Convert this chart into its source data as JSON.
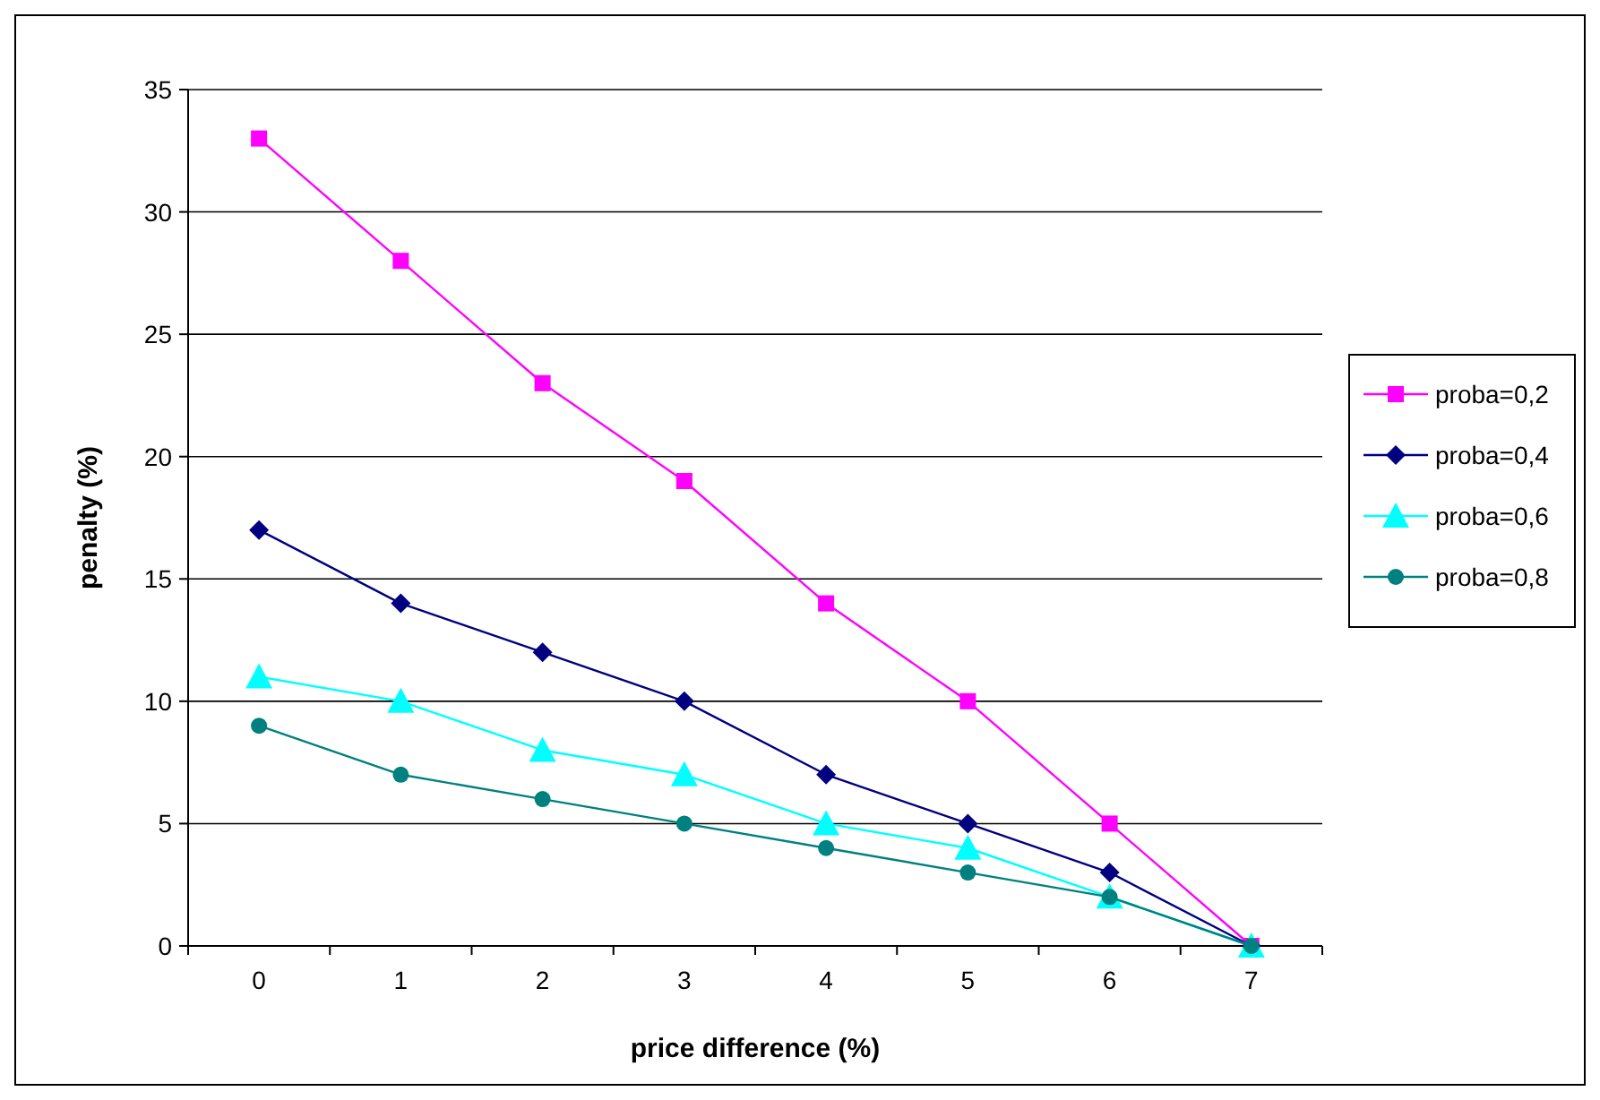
{
  "chart_data": {
    "type": "line",
    "xlabel": "price difference (%)",
    "ylabel": "penalty (%)",
    "categories": [
      "0",
      "1",
      "2",
      "3",
      "4",
      "5",
      "6",
      "7"
    ],
    "series": [
      {
        "name": "proba=0,2",
        "color": "#ff00ff",
        "marker": "square",
        "values": [
          33,
          28,
          23,
          19,
          14,
          10,
          5,
          0
        ]
      },
      {
        "name": "proba=0,4",
        "color": "#000080",
        "marker": "diamond",
        "values": [
          17,
          14,
          12,
          10,
          7,
          5,
          3,
          0
        ]
      },
      {
        "name": "proba=0,6",
        "color": "#00ffff",
        "marker": "triangle",
        "values": [
          11,
          10,
          8,
          7,
          5,
          4,
          2,
          0
        ]
      },
      {
        "name": "proba=0,8",
        "color": "#008080",
        "marker": "circle",
        "values": [
          9,
          7,
          6,
          5,
          4,
          3,
          2,
          0
        ]
      }
    ],
    "ylim": [
      0,
      35
    ],
    "yticks": [
      0,
      5,
      10,
      15,
      20,
      25,
      30,
      35
    ],
    "grid": "y",
    "legend": "right",
    "line_style": "solid"
  }
}
